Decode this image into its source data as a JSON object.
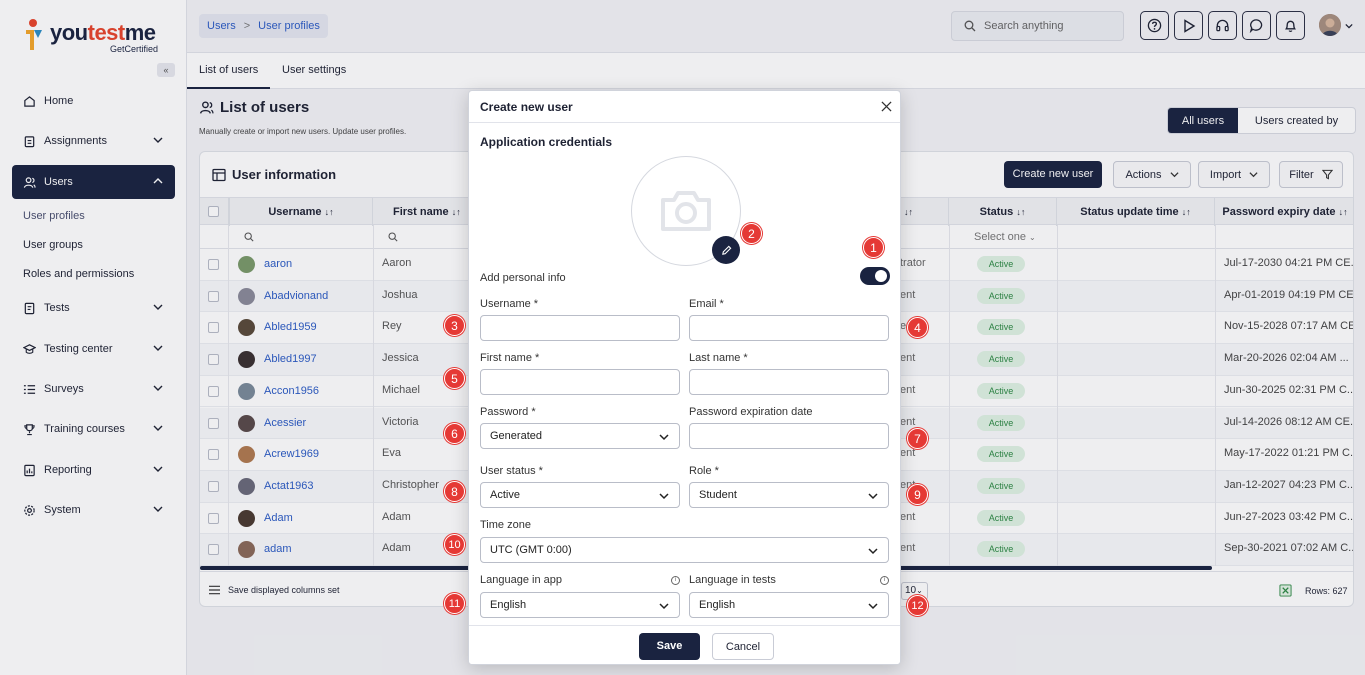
{
  "brand": {
    "name_part1": "you",
    "name_part2": "test",
    "name_part3": "me",
    "tagline": "GetCertified"
  },
  "sidebar": {
    "collapse": "«",
    "items": [
      {
        "label": "Home",
        "icon": "home-icon"
      },
      {
        "label": "Assignments",
        "icon": "clipboard-icon"
      },
      {
        "label": "Users",
        "icon": "users-icon"
      },
      {
        "label": "Tests",
        "icon": "test-icon"
      },
      {
        "label": "Testing center",
        "icon": "testing-center-icon"
      },
      {
        "label": "Surveys",
        "icon": "survey-icon"
      },
      {
        "label": "Training courses",
        "icon": "trophy-icon"
      },
      {
        "label": "Reporting",
        "icon": "report-icon"
      },
      {
        "label": "System",
        "icon": "gear-icon"
      }
    ],
    "sub_items": [
      "User profiles",
      "User groups",
      "Roles and permissions"
    ]
  },
  "header": {
    "breadcrumb": [
      "Users",
      ">",
      "User profiles"
    ],
    "search_placeholder": "Search anything"
  },
  "tabs": [
    "List of users",
    "User settings"
  ],
  "page": {
    "title": "List of users",
    "subtitle": "Manually create or import new users. Update user profiles.",
    "segment": [
      "All users",
      "Users created by me"
    ]
  },
  "card": {
    "title": "User information",
    "create_btn": "Create new user",
    "actions_btn": "Actions",
    "import_btn": "Import",
    "filter_btn": "Filter",
    "columns": [
      "Username",
      "First name",
      "Status",
      "Status update time",
      "Password expiry date"
    ],
    "status_filter": "Select one",
    "rows": [
      {
        "username": "aaron",
        "first": "Aaron",
        "role": "trator",
        "status": "Active",
        "expiry": "Jul-17-2030 04:21 PM CE..."
      },
      {
        "username": "Abadvionand",
        "first": "Joshua",
        "role": "ent",
        "status": "Active",
        "expiry": "Apr-01-2019 04:19 PM CE..."
      },
      {
        "username": "Abled1959",
        "first": "Rey",
        "role": "ent",
        "status": "Active",
        "expiry": "Nov-15-2028 07:17 AM CET"
      },
      {
        "username": "Abled1997",
        "first": "Jessica",
        "role": "ent",
        "status": "Active",
        "expiry": "Mar-20-2026 02:04 AM ..."
      },
      {
        "username": "Accon1956",
        "first": "Michael",
        "role": "ent",
        "status": "Active",
        "expiry": "Jun-30-2025 02:31 PM C..."
      },
      {
        "username": "Acessier",
        "first": "Victoria",
        "role": "ent",
        "status": "Active",
        "expiry": "Jul-14-2026 08:12 AM CE..."
      },
      {
        "username": "Acrew1969",
        "first": "Eva",
        "role": "ent",
        "status": "Active",
        "expiry": "May-17-2022 01:21 PM C..."
      },
      {
        "username": "Actat1963",
        "first": "Christopher",
        "role": "ent",
        "status": "Active",
        "expiry": "Jan-12-2027 04:23 PM C..."
      },
      {
        "username": "Adam",
        "first": "Adam",
        "role": "ent",
        "status": "Active",
        "expiry": "Jun-27-2023 03:42 PM C..."
      },
      {
        "username": "adam",
        "first": "Adam",
        "role": "ent",
        "status": "Active",
        "expiry": "Sep-30-2021 07:02 AM C..."
      }
    ],
    "footer_save": "Save displayed columns set",
    "page_size": "10",
    "rows_count": "Rows: 627"
  },
  "modal": {
    "title": "Create new user",
    "section": "Application credentials",
    "add_personal_info": "Add personal info",
    "fields": {
      "username": "Username *",
      "email": "Email *",
      "first_name": "First name *",
      "last_name": "Last name *",
      "password": "Password *",
      "password_value": "Generated",
      "password_exp": "Password expiration date",
      "user_status": "User status *",
      "user_status_value": "Active",
      "role": "Role *",
      "role_value": "Student",
      "timezone": "Time zone",
      "timezone_value": "UTC (GMT 0:00)",
      "lang_app": "Language in app",
      "lang_app_value": "English",
      "lang_tests": "Language in tests",
      "lang_tests_value": "English"
    },
    "save": "Save",
    "cancel": "Cancel"
  },
  "markers": [
    "1",
    "2",
    "3",
    "4",
    "5",
    "6",
    "7",
    "8",
    "9",
    "10",
    "11",
    "12"
  ]
}
